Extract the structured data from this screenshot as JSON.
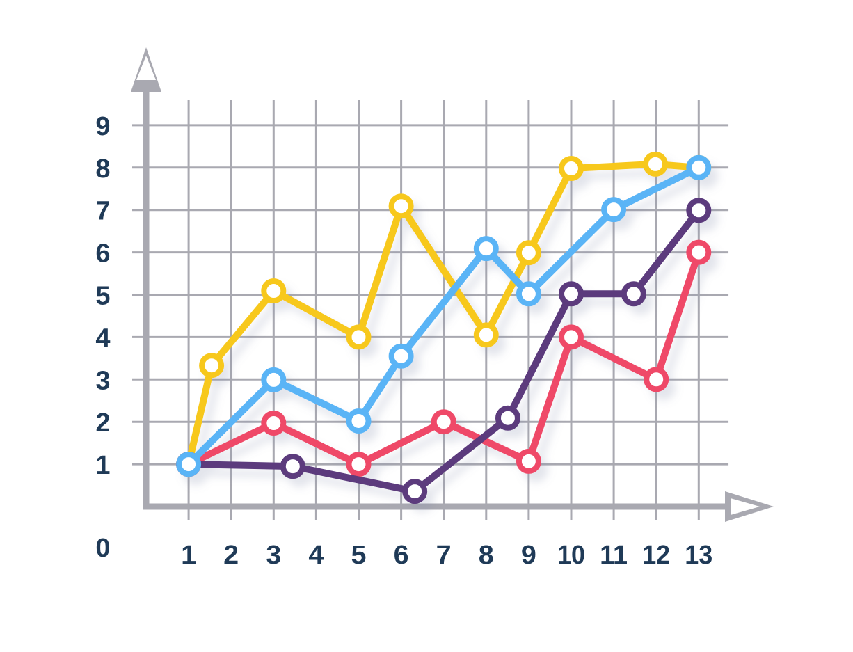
{
  "chart_data": {
    "type": "line",
    "origin_label": 0,
    "xlim": [
      0,
      13.7
    ],
    "ylim": [
      0,
      9.6
    ],
    "xticks": [
      1,
      2,
      3,
      4,
      5,
      6,
      7,
      8,
      9,
      10,
      11,
      12,
      13
    ],
    "yticks": [
      1,
      2,
      3,
      4,
      5,
      6,
      7,
      8,
      9
    ],
    "grid": true,
    "series": [
      {
        "color": "#f7c81c",
        "x": [
          1,
          1.54,
          3,
          5,
          6,
          8,
          9,
          10,
          11.98,
          13
        ],
        "values": [
          1,
          3.33,
          5.09,
          4.0,
          7.09,
          4.05,
          5.99,
          7.98,
          8.08,
          8.0
        ]
      },
      {
        "color": "#ef4867",
        "x": [
          1,
          3,
          5,
          7,
          9,
          10,
          12,
          13
        ],
        "values": [
          1,
          1.97,
          1,
          2.0,
          1.07,
          4.0,
          3.0,
          6.0
        ]
      },
      {
        "color": "#5b3b7d",
        "x": [
          1,
          3.45,
          6.32,
          8.51,
          10,
          11.47,
          13
        ],
        "values": [
          1,
          0.95,
          0.36,
          2.09,
          5.02,
          5.02,
          6.99
        ]
      },
      {
        "color": "#5ab4f6",
        "x": [
          1,
          3,
          5,
          6,
          8,
          9,
          11,
          13
        ],
        "values": [
          1,
          2.99,
          2.02,
          3.55,
          6.09,
          5.02,
          7.01,
          8
        ]
      }
    ]
  }
}
